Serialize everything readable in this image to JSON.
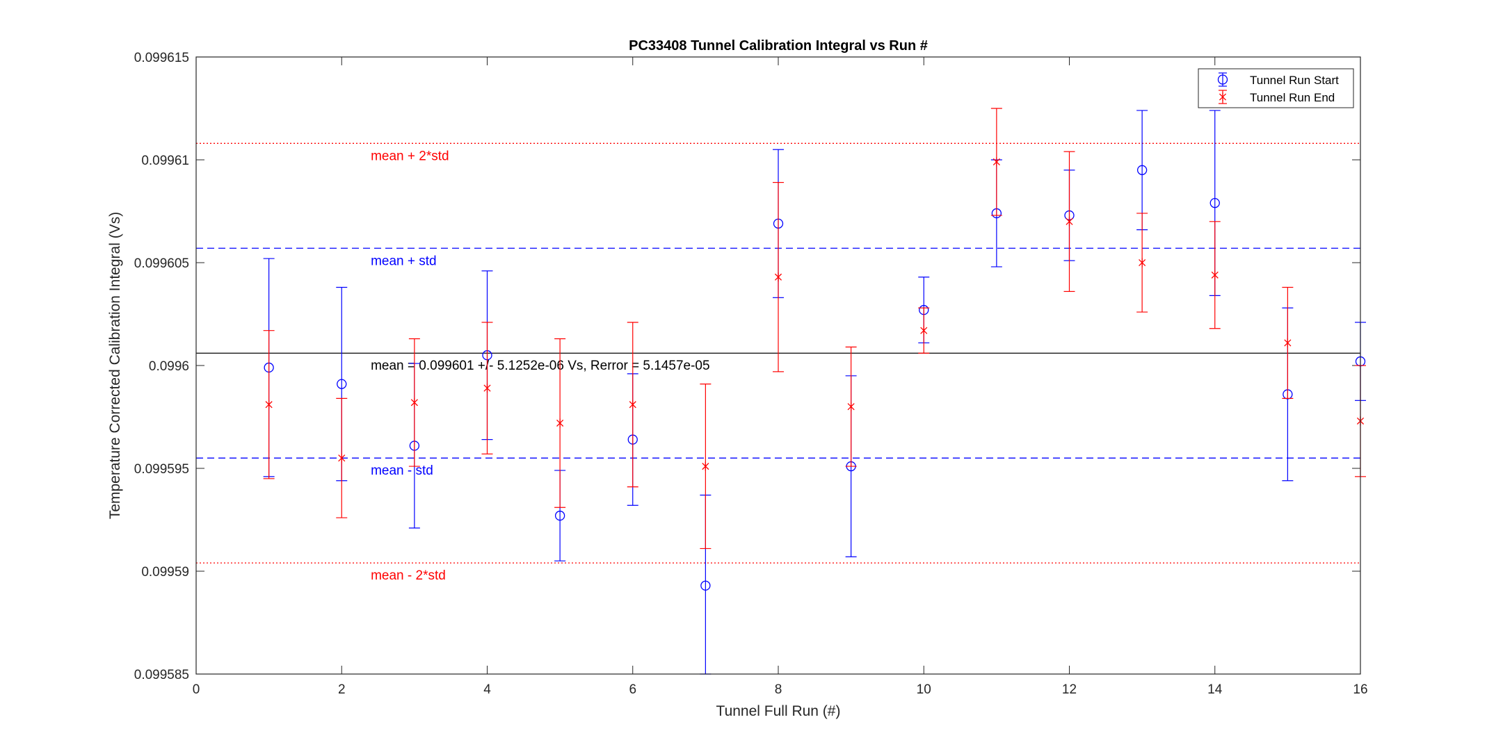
{
  "chart_data": {
    "type": "scatter",
    "title": "PC33408 Tunnel Calibration Integral vs Run #",
    "xlabel": "Tunnel Full Run (#)",
    "ylabel": "Temperature Corrected Calibration Integral (Vs)",
    "xlim": [
      0,
      16
    ],
    "ylim": [
      0.099585,
      0.099615
    ],
    "xticks": [
      0,
      2,
      4,
      6,
      8,
      10,
      12,
      14,
      16
    ],
    "xtick_labels": [
      "0",
      "2",
      "4",
      "6",
      "8",
      "10",
      "12",
      "14",
      "16"
    ],
    "yticks": [
      0.099585,
      0.09959,
      0.099595,
      0.0996,
      0.099605,
      0.09961,
      0.099615
    ],
    "ytick_labels": [
      "0.099585",
      "0.09959",
      "0.099595",
      "0.0996",
      "0.099605",
      "0.09961",
      "0.099615"
    ],
    "grid": false,
    "legend_position": "top-right",
    "series": [
      {
        "name": "Tunnel Run Start",
        "marker": "circle",
        "color": "#0000ff",
        "x": [
          1,
          2,
          3,
          4,
          5,
          6,
          7,
          8,
          9,
          10,
          11,
          12,
          13,
          14,
          15,
          16
        ],
        "y": [
          0.0995999,
          0.0995991,
          0.0995961,
          0.0996005,
          0.0995927,
          0.0995964,
          0.0995893,
          0.0996069,
          0.0995951,
          0.0996027,
          0.0996074,
          0.0996073,
          0.0996095,
          0.0996079,
          0.0995986,
          0.0996002
        ],
        "err": [
          5.3e-06,
          4.7e-06,
          4e-06,
          4.1e-06,
          2.2e-06,
          3.2e-06,
          4.4e-06,
          3.6e-06,
          4.4e-06,
          1.6e-06,
          2.6e-06,
          2.2e-06,
          2.9e-06,
          4.5e-06,
          4.2e-06,
          1.9e-06
        ]
      },
      {
        "name": "Tunnel Run End",
        "marker": "asterisk",
        "color": "#ff0000",
        "x": [
          1,
          2,
          3,
          4,
          5,
          6,
          7,
          8,
          9,
          10,
          11,
          12,
          13,
          14,
          15,
          16
        ],
        "y": [
          0.0995981,
          0.0995955,
          0.0995982,
          0.0995989,
          0.0995972,
          0.0995981,
          0.0995951,
          0.0996043,
          0.099598,
          0.0996017,
          0.0996099,
          0.099607,
          0.099605,
          0.0996044,
          0.0996011,
          0.0995973
        ],
        "err": [
          3.6e-06,
          2.9e-06,
          3.1e-06,
          3.2e-06,
          4.1e-06,
          4e-06,
          4e-06,
          4.6e-06,
          2.9e-06,
          1.1e-06,
          2.6e-06,
          3.4e-06,
          2.4e-06,
          2.6e-06,
          2.7e-06,
          2.7e-06
        ]
      }
    ],
    "reference_lines": [
      {
        "y": 0.0996108,
        "style": "dotted",
        "color": "#ff0000",
        "label": "mean + 2*std"
      },
      {
        "y": 0.0996057,
        "style": "dashed",
        "color": "#0000ff",
        "label": "mean + std"
      },
      {
        "y": 0.0996006,
        "style": "solid",
        "color": "#000000",
        "label": "mean = 0.099601 +/- 5.1252e-06 Vs, Rerror = 5.1457e-05"
      },
      {
        "y": 0.0995955,
        "style": "dashed",
        "color": "#0000ff",
        "label": "mean - std"
      },
      {
        "y": 0.0995904,
        "style": "dotted",
        "color": "#ff0000",
        "label": "mean - 2*std"
      }
    ],
    "reference_label_x": 2.4
  }
}
